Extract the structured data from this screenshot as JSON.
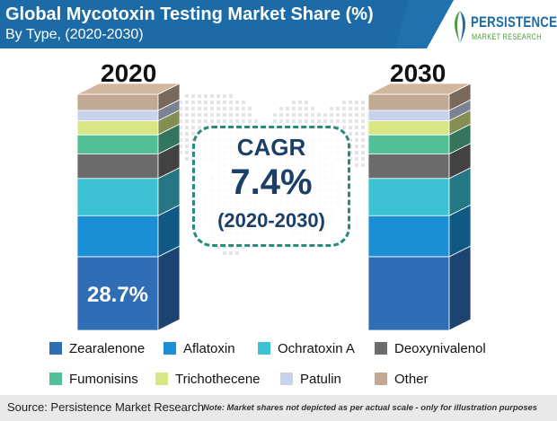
{
  "header": {
    "title": "Global Mycotoxin Testing Market Share (%)",
    "subtitle": "By Type, (2020-2030)",
    "banner_color": "#1c6ba6"
  },
  "logo": {
    "line1": "PERSISTENCE",
    "line2": "MARKET RESEARCH"
  },
  "cagr": {
    "label": "CAGR",
    "value": "7.4%",
    "period": "(2020-2030)"
  },
  "footer": {
    "source": "Source: Persistence Market Research",
    "note": "Note: Market shares not depicted as per actual scale - only for illustration purposes"
  },
  "chart_data": {
    "type": "bar",
    "stacked": true,
    "categories": [
      "2020",
      "2030"
    ],
    "series": [
      {
        "name": "Zearalenone",
        "values": [
          28.7,
          28.7
        ],
        "color": "#2f6db5"
      },
      {
        "name": "Aflatoxin",
        "values": [
          16.0,
          16.0
        ],
        "color": "#1b8fd6"
      },
      {
        "name": "Ochratoxin A",
        "values": [
          14.5,
          14.5
        ],
        "color": "#3cc2d3"
      },
      {
        "name": "Deoxynivalenol",
        "values": [
          9.5,
          9.5
        ],
        "color": "#6b6b6b"
      },
      {
        "name": "Fumonisins",
        "values": [
          7.5,
          7.5
        ],
        "color": "#52bf96"
      },
      {
        "name": "Trichothecene",
        "values": [
          5.5,
          5.5
        ],
        "color": "#d8e686"
      },
      {
        "name": "Patulin",
        "values": [
          4.0,
          4.0
        ],
        "color": "#c9d2ec"
      },
      {
        "name": "Other",
        "values": [
          6.3,
          6.3
        ],
        "color": "#c2a993"
      }
    ],
    "data_labels": [
      {
        "category": "2020",
        "series": "Zearalenone",
        "text": "28.7%"
      }
    ],
    "legend_position": "bottom"
  }
}
